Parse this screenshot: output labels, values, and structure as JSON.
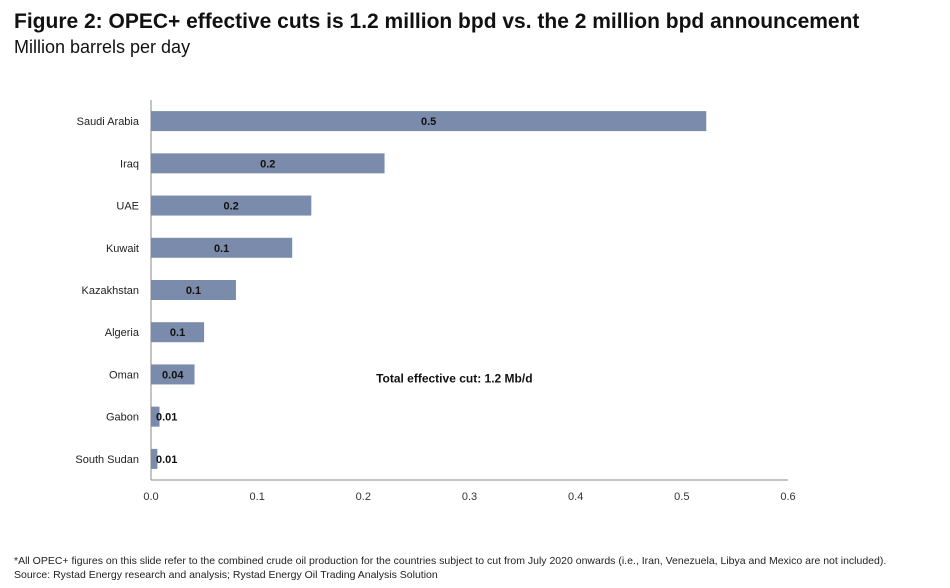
{
  "chart_data": {
    "type": "bar",
    "orientation": "horizontal",
    "title": "Figure 2: OPEC+ effective cuts is 1.2 million bpd vs. the 2 million bpd announcement",
    "subtitle": "Million barrels per day",
    "categories": [
      "Saudi Arabia",
      "Iraq",
      "UAE",
      "Kuwait",
      "Kazakhstan",
      "Algeria",
      "Oman",
      "Gabon",
      "South Sudan"
    ],
    "values": [
      0.523,
      0.22,
      0.151,
      0.133,
      0.08,
      0.05,
      0.041,
      0.008,
      0.006
    ],
    "data_labels": [
      "0.5",
      "0.2",
      "0.2",
      "0.1",
      "0.1",
      "0.1",
      "0.04",
      "0.01",
      "0.01"
    ],
    "xlim": [
      0,
      0.6
    ],
    "xticks": [
      "0.0",
      "0.1",
      "0.2",
      "0.3",
      "0.4",
      "0.5",
      "0.6"
    ],
    "grid": false,
    "bar_color": "#7a8bab",
    "annotation": "Total effective cut: 1.2 Mb/d"
  },
  "footnote": "*All OPEC+ figures on this slide refer to the combined crude oil production for the countries subject to cut from July 2020 onwards (i.e., Iran, Venezuela, Libya and Mexico are not included). Source: Rystad Energy research and analysis; Rystad Energy Oil Trading Analysis Solution"
}
